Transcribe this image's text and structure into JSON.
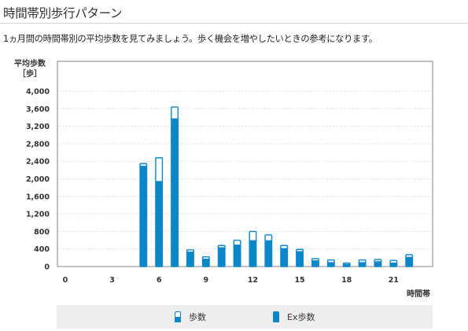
{
  "page": {
    "title": "時間帯別歩行パターン",
    "description": "1ヵ月間の時間帯別の平均歩数を見てみましょう。歩く機会を増やしたいときの参考になります。"
  },
  "chart_data": {
    "type": "bar",
    "title": "",
    "ylabel_line1": "平均歩数",
    "ylabel_line2": "［歩］",
    "xlabel": "時間帯",
    "ylim": [
      0,
      4000
    ],
    "yticks": [
      0,
      400,
      800,
      1200,
      1600,
      2000,
      2400,
      2800,
      3200,
      3600,
      4000
    ],
    "ytick_labels": [
      "0",
      "400",
      "800",
      "1,200",
      "1,600",
      "2,000",
      "2,400",
      "2,800",
      "3,200",
      "3,600",
      "4,000"
    ],
    "xticks": [
      0,
      3,
      6,
      9,
      12,
      15,
      18,
      21
    ],
    "xtick_labels": [
      "0",
      "3",
      "6",
      "9",
      "12",
      "15",
      "18",
      "21"
    ],
    "x": [
      0,
      1,
      2,
      3,
      4,
      5,
      6,
      7,
      8,
      9,
      10,
      11,
      12,
      13,
      14,
      15,
      16,
      17,
      18,
      19,
      20,
      21,
      22,
      23
    ],
    "series": [
      {
        "name": "歩数",
        "values": [
          0,
          0,
          0,
          0,
          0,
          2350,
          2480,
          3640,
          380,
          220,
          480,
          600,
          800,
          720,
          480,
          390,
          180,
          150,
          80,
          150,
          160,
          140,
          270,
          0
        ]
      },
      {
        "name": "Ex歩数",
        "values": [
          0,
          0,
          0,
          0,
          0,
          2300,
          1950,
          3380,
          340,
          180,
          440,
          500,
          600,
          600,
          420,
          350,
          140,
          100,
          60,
          100,
          120,
          90,
          220,
          0
        ]
      }
    ],
    "grid": true,
    "legend_position": "bottom",
    "colors": {
      "bar": "#0a86c9",
      "grid": "#d8d8d8",
      "axis": "#999999"
    }
  }
}
